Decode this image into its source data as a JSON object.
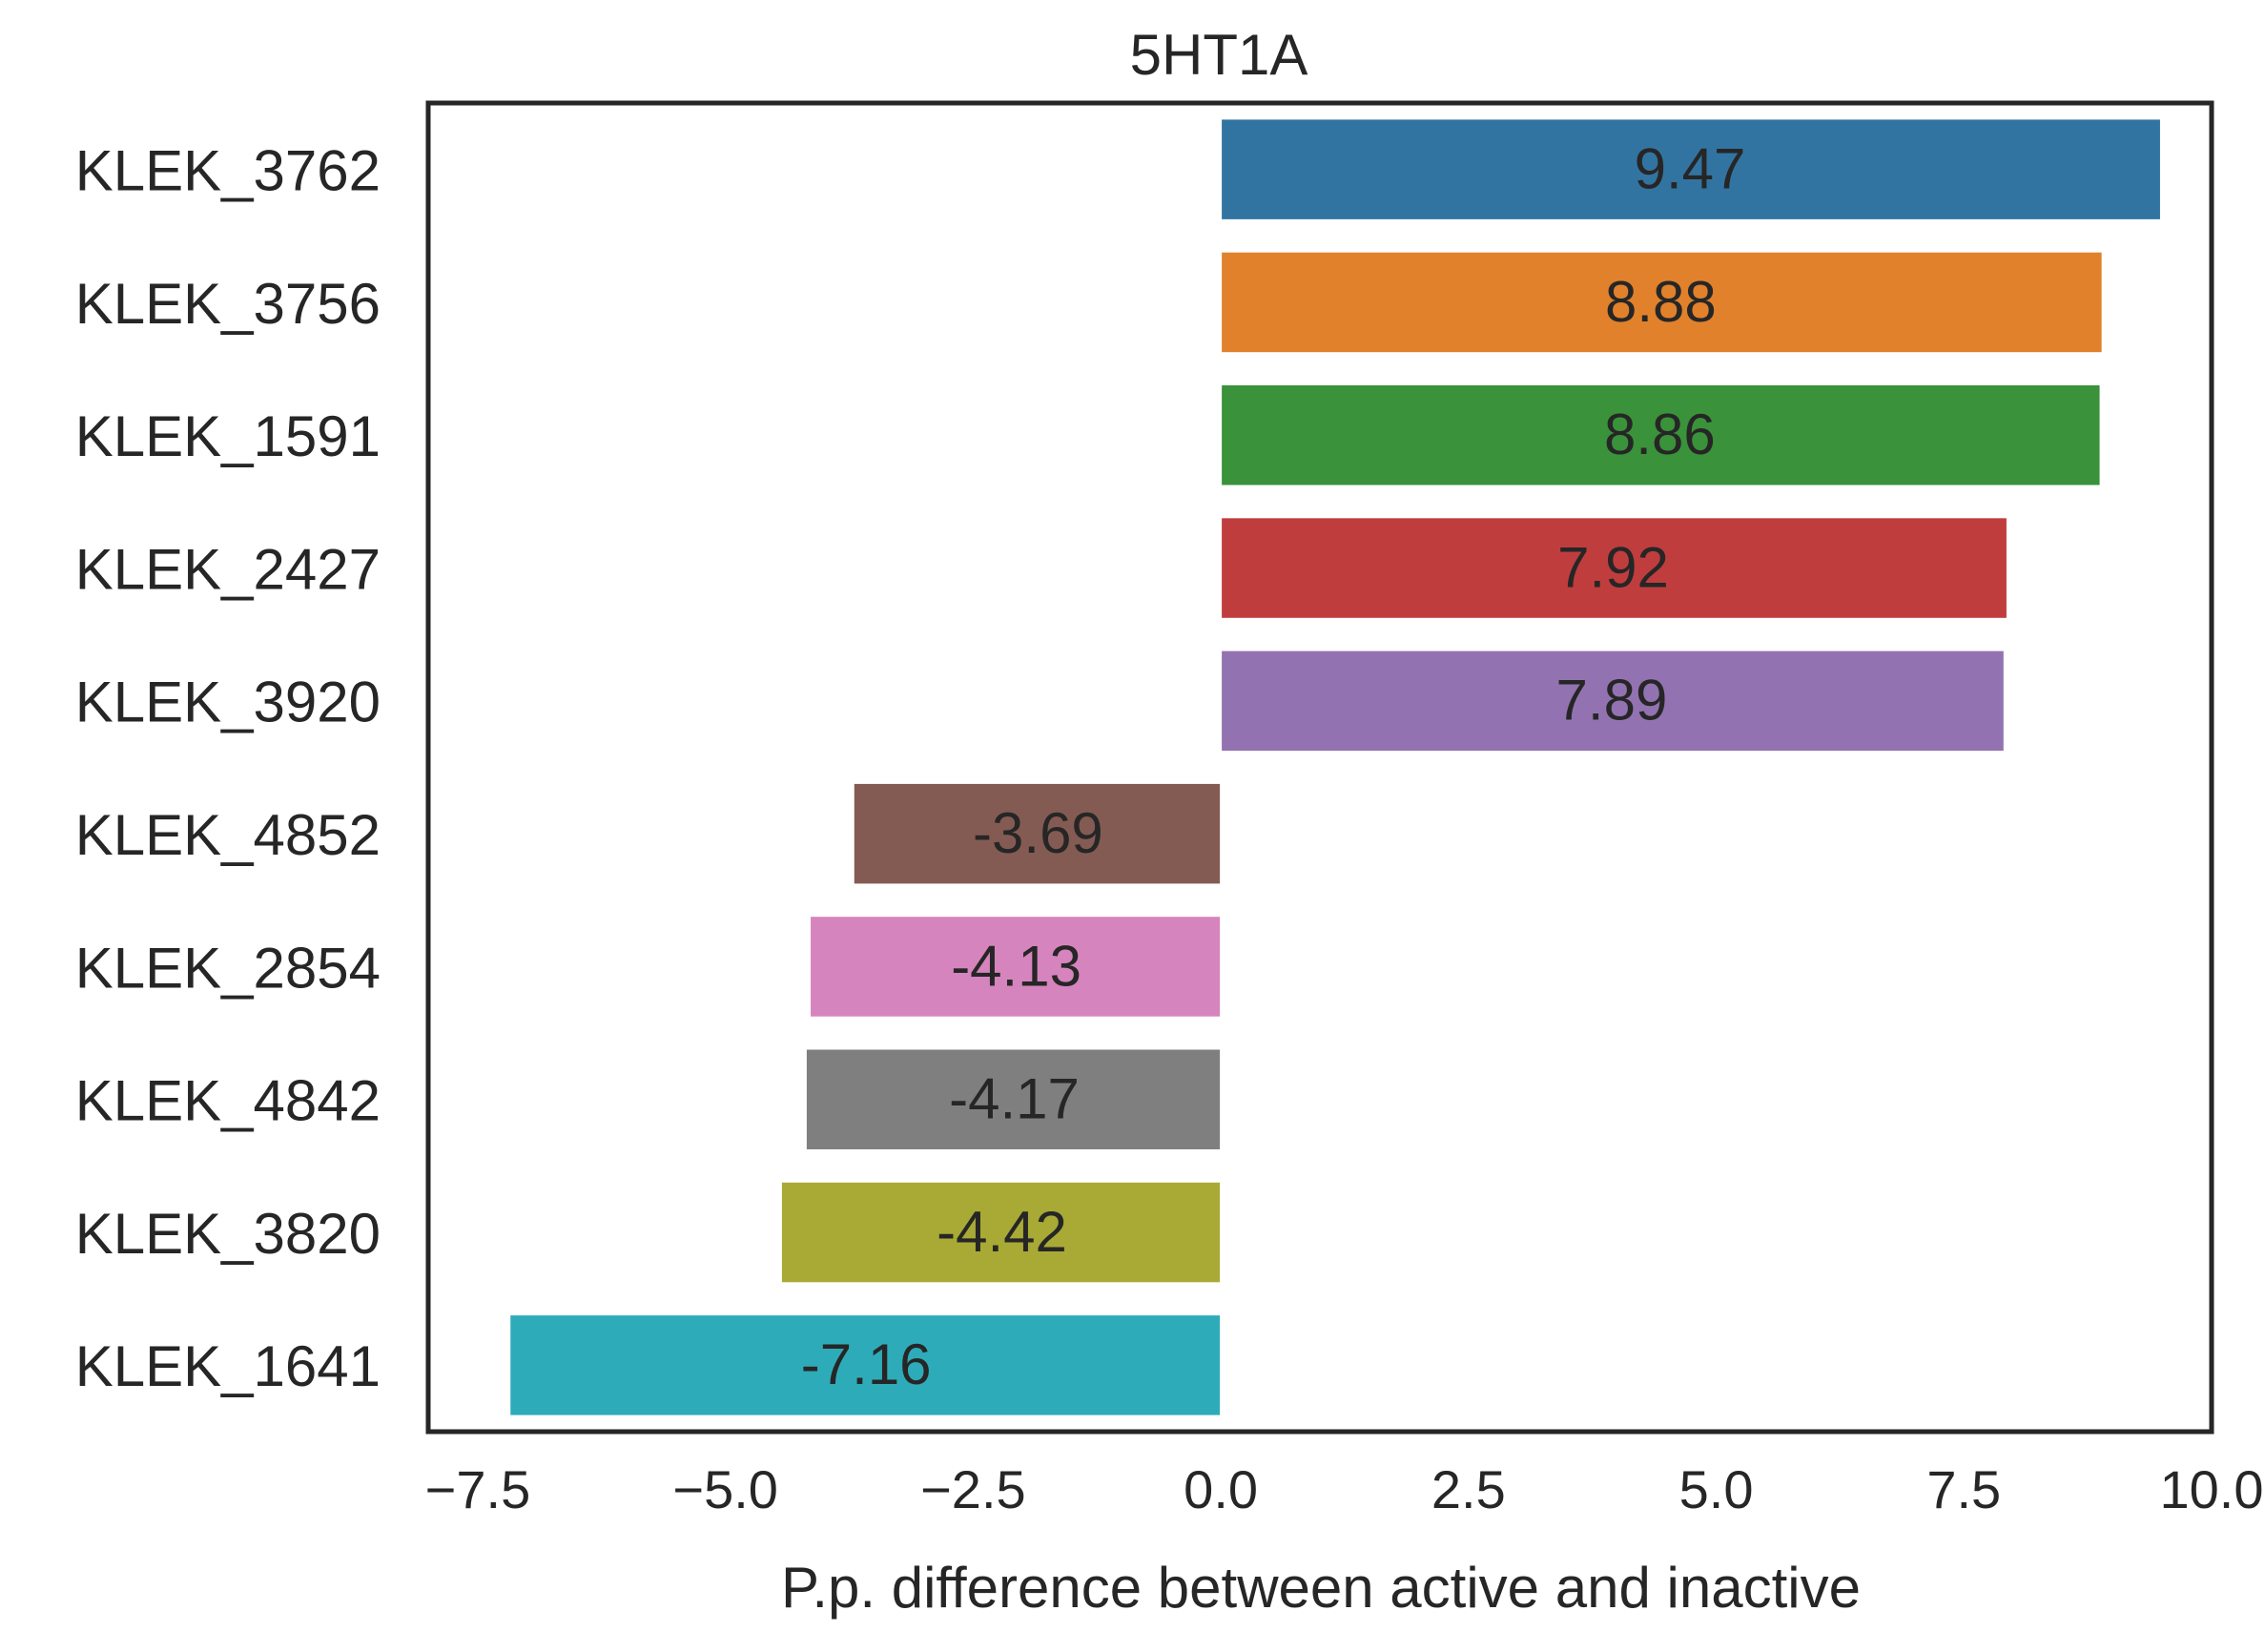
{
  "chart_data": {
    "type": "bar",
    "orientation": "horizontal",
    "title": "5HT1A",
    "xlabel": "P.p. difference between active and inactive",
    "ylabel": "",
    "xlim": [
      -8.0,
      10.0
    ],
    "xticks": [
      -7.5,
      -5.0,
      -2.5,
      0.0,
      2.5,
      5.0,
      7.5,
      10.0
    ],
    "xtick_labels": [
      "−7.5",
      "−5.0",
      "−2.5",
      "0.0",
      "2.5",
      "5.0",
      "7.5",
      "10.0"
    ],
    "grid": false,
    "categories": [
      "KLEK_3762",
      "KLEK_3756",
      "KLEK_1591",
      "KLEK_2427",
      "KLEK_3920",
      "KLEK_4852",
      "KLEK_2854",
      "KLEK_4842",
      "KLEK_3820",
      "KLEK_1641"
    ],
    "values": [
      9.47,
      8.88,
      8.86,
      7.92,
      7.89,
      -3.69,
      -4.13,
      -4.17,
      -4.42,
      -7.16
    ],
    "data_labels": [
      "9.47",
      "8.88",
      "8.86",
      "7.92",
      "7.89",
      "-3.69",
      "-4.13",
      "-4.17",
      "-4.42",
      "-7.16"
    ],
    "colors": [
      "#3274a1",
      "#e1812c",
      "#3a923a",
      "#c03d3e",
      "#9372b2",
      "#845b53",
      "#d684bd",
      "#7f7f7f",
      "#a9aa35",
      "#2eabb8"
    ]
  }
}
